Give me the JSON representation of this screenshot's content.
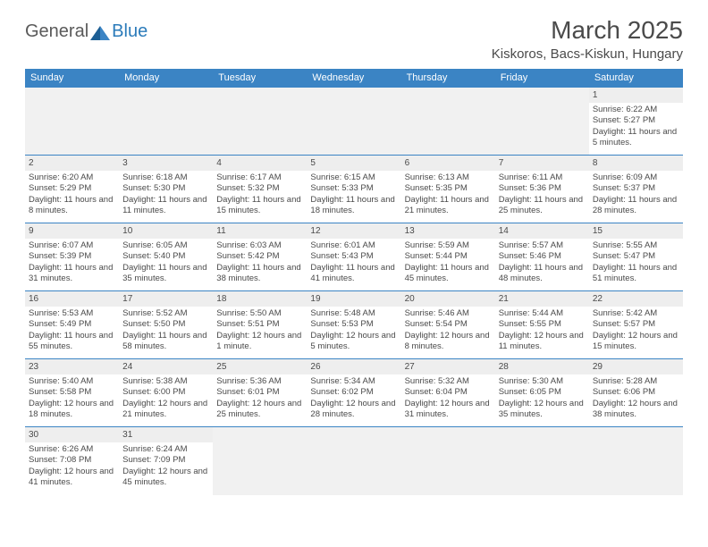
{
  "logo": {
    "text1": "General",
    "text2": "Blue"
  },
  "header": {
    "month_title": "March 2025",
    "location": "Kiskoros, Bacs-Kiskun, Hungary"
  },
  "colors": {
    "header_bg": "#3b84c4",
    "header_text": "#ffffff",
    "daynum_bg": "#eeeeee",
    "empty_bg": "#f1f1f1",
    "border": "#3b84c4",
    "body_text": "#4a4a4a",
    "logo_blue": "#2b7bba",
    "logo_gray": "#5a5a5a"
  },
  "weekdays": [
    "Sunday",
    "Monday",
    "Tuesday",
    "Wednesday",
    "Thursday",
    "Friday",
    "Saturday"
  ],
  "weeks": [
    [
      null,
      null,
      null,
      null,
      null,
      null,
      {
        "day": "1",
        "sunrise": "Sunrise: 6:22 AM",
        "sunset": "Sunset: 5:27 PM",
        "daylight": "Daylight: 11 hours and 5 minutes."
      }
    ],
    [
      {
        "day": "2",
        "sunrise": "Sunrise: 6:20 AM",
        "sunset": "Sunset: 5:29 PM",
        "daylight": "Daylight: 11 hours and 8 minutes."
      },
      {
        "day": "3",
        "sunrise": "Sunrise: 6:18 AM",
        "sunset": "Sunset: 5:30 PM",
        "daylight": "Daylight: 11 hours and 11 minutes."
      },
      {
        "day": "4",
        "sunrise": "Sunrise: 6:17 AM",
        "sunset": "Sunset: 5:32 PM",
        "daylight": "Daylight: 11 hours and 15 minutes."
      },
      {
        "day": "5",
        "sunrise": "Sunrise: 6:15 AM",
        "sunset": "Sunset: 5:33 PM",
        "daylight": "Daylight: 11 hours and 18 minutes."
      },
      {
        "day": "6",
        "sunrise": "Sunrise: 6:13 AM",
        "sunset": "Sunset: 5:35 PM",
        "daylight": "Daylight: 11 hours and 21 minutes."
      },
      {
        "day": "7",
        "sunrise": "Sunrise: 6:11 AM",
        "sunset": "Sunset: 5:36 PM",
        "daylight": "Daylight: 11 hours and 25 minutes."
      },
      {
        "day": "8",
        "sunrise": "Sunrise: 6:09 AM",
        "sunset": "Sunset: 5:37 PM",
        "daylight": "Daylight: 11 hours and 28 minutes."
      }
    ],
    [
      {
        "day": "9",
        "sunrise": "Sunrise: 6:07 AM",
        "sunset": "Sunset: 5:39 PM",
        "daylight": "Daylight: 11 hours and 31 minutes."
      },
      {
        "day": "10",
        "sunrise": "Sunrise: 6:05 AM",
        "sunset": "Sunset: 5:40 PM",
        "daylight": "Daylight: 11 hours and 35 minutes."
      },
      {
        "day": "11",
        "sunrise": "Sunrise: 6:03 AM",
        "sunset": "Sunset: 5:42 PM",
        "daylight": "Daylight: 11 hours and 38 minutes."
      },
      {
        "day": "12",
        "sunrise": "Sunrise: 6:01 AM",
        "sunset": "Sunset: 5:43 PM",
        "daylight": "Daylight: 11 hours and 41 minutes."
      },
      {
        "day": "13",
        "sunrise": "Sunrise: 5:59 AM",
        "sunset": "Sunset: 5:44 PM",
        "daylight": "Daylight: 11 hours and 45 minutes."
      },
      {
        "day": "14",
        "sunrise": "Sunrise: 5:57 AM",
        "sunset": "Sunset: 5:46 PM",
        "daylight": "Daylight: 11 hours and 48 minutes."
      },
      {
        "day": "15",
        "sunrise": "Sunrise: 5:55 AM",
        "sunset": "Sunset: 5:47 PM",
        "daylight": "Daylight: 11 hours and 51 minutes."
      }
    ],
    [
      {
        "day": "16",
        "sunrise": "Sunrise: 5:53 AM",
        "sunset": "Sunset: 5:49 PM",
        "daylight": "Daylight: 11 hours and 55 minutes."
      },
      {
        "day": "17",
        "sunrise": "Sunrise: 5:52 AM",
        "sunset": "Sunset: 5:50 PM",
        "daylight": "Daylight: 11 hours and 58 minutes."
      },
      {
        "day": "18",
        "sunrise": "Sunrise: 5:50 AM",
        "sunset": "Sunset: 5:51 PM",
        "daylight": "Daylight: 12 hours and 1 minute."
      },
      {
        "day": "19",
        "sunrise": "Sunrise: 5:48 AM",
        "sunset": "Sunset: 5:53 PM",
        "daylight": "Daylight: 12 hours and 5 minutes."
      },
      {
        "day": "20",
        "sunrise": "Sunrise: 5:46 AM",
        "sunset": "Sunset: 5:54 PM",
        "daylight": "Daylight: 12 hours and 8 minutes."
      },
      {
        "day": "21",
        "sunrise": "Sunrise: 5:44 AM",
        "sunset": "Sunset: 5:55 PM",
        "daylight": "Daylight: 12 hours and 11 minutes."
      },
      {
        "day": "22",
        "sunrise": "Sunrise: 5:42 AM",
        "sunset": "Sunset: 5:57 PM",
        "daylight": "Daylight: 12 hours and 15 minutes."
      }
    ],
    [
      {
        "day": "23",
        "sunrise": "Sunrise: 5:40 AM",
        "sunset": "Sunset: 5:58 PM",
        "daylight": "Daylight: 12 hours and 18 minutes."
      },
      {
        "day": "24",
        "sunrise": "Sunrise: 5:38 AM",
        "sunset": "Sunset: 6:00 PM",
        "daylight": "Daylight: 12 hours and 21 minutes."
      },
      {
        "day": "25",
        "sunrise": "Sunrise: 5:36 AM",
        "sunset": "Sunset: 6:01 PM",
        "daylight": "Daylight: 12 hours and 25 minutes."
      },
      {
        "day": "26",
        "sunrise": "Sunrise: 5:34 AM",
        "sunset": "Sunset: 6:02 PM",
        "daylight": "Daylight: 12 hours and 28 minutes."
      },
      {
        "day": "27",
        "sunrise": "Sunrise: 5:32 AM",
        "sunset": "Sunset: 6:04 PM",
        "daylight": "Daylight: 12 hours and 31 minutes."
      },
      {
        "day": "28",
        "sunrise": "Sunrise: 5:30 AM",
        "sunset": "Sunset: 6:05 PM",
        "daylight": "Daylight: 12 hours and 35 minutes."
      },
      {
        "day": "29",
        "sunrise": "Sunrise: 5:28 AM",
        "sunset": "Sunset: 6:06 PM",
        "daylight": "Daylight: 12 hours and 38 minutes."
      }
    ],
    [
      {
        "day": "30",
        "sunrise": "Sunrise: 6:26 AM",
        "sunset": "Sunset: 7:08 PM",
        "daylight": "Daylight: 12 hours and 41 minutes."
      },
      {
        "day": "31",
        "sunrise": "Sunrise: 6:24 AM",
        "sunset": "Sunset: 7:09 PM",
        "daylight": "Daylight: 12 hours and 45 minutes."
      },
      null,
      null,
      null,
      null,
      null
    ]
  ]
}
